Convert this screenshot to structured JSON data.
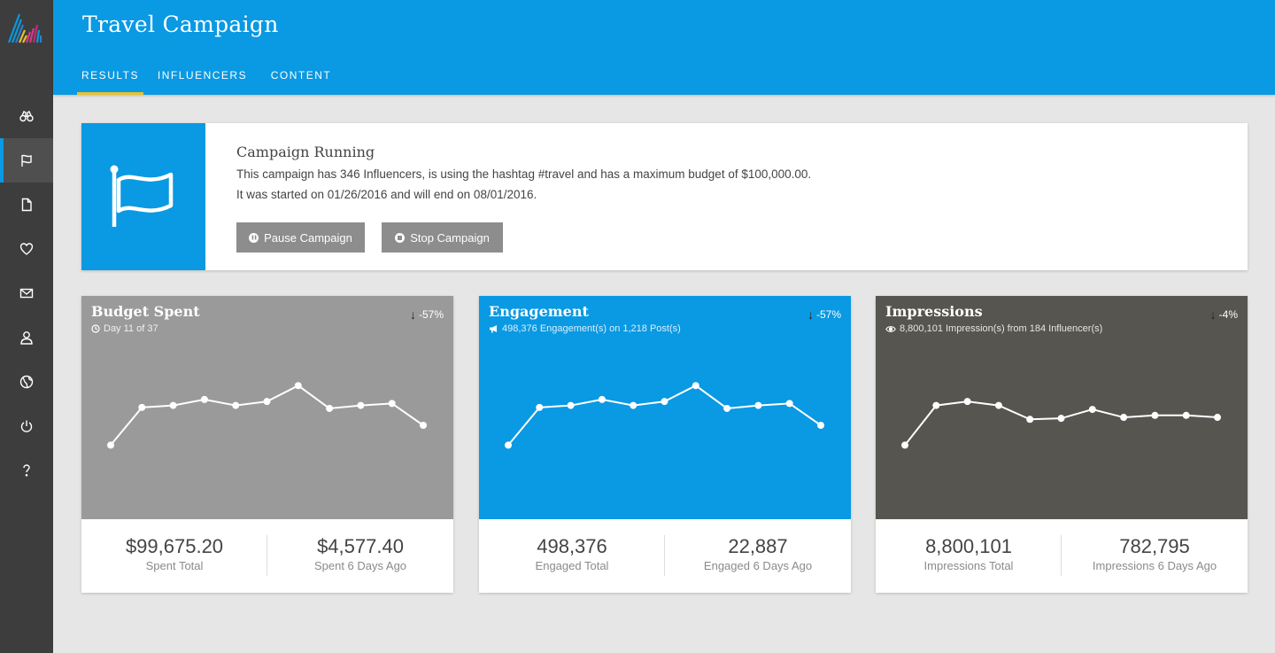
{
  "header": {
    "title": "Travel Campaign",
    "tabs": [
      {
        "label": "RESULTS",
        "active": true
      },
      {
        "label": "INFLUENCERS",
        "active": false
      },
      {
        "label": "CONTENT",
        "active": false
      }
    ]
  },
  "sidebar": {
    "items": [
      {
        "icon": "binoculars-icon"
      },
      {
        "icon": "flag-icon",
        "active": true
      },
      {
        "icon": "document-icon"
      },
      {
        "icon": "heart-icon"
      },
      {
        "icon": "envelope-icon"
      },
      {
        "icon": "user-icon"
      },
      {
        "icon": "globe-icon"
      },
      {
        "icon": "power-icon"
      },
      {
        "icon": "question-icon"
      }
    ]
  },
  "status": {
    "title": "Campaign Running",
    "line1": "This campaign has 346 Influencers, is using the hashtag #travel and has a maximum budget of $100,000.00.",
    "line2": "It was started on 01/26/2016 and will end on 08/01/2016.",
    "pause_label": "Pause Campaign",
    "stop_label": "Stop Campaign"
  },
  "colors": {
    "primary": "#0a99e3",
    "budget_bg": "#9a9a9a",
    "engagement_bg": "#0a99e3",
    "impressions_bg": "#56554f",
    "sidebar": "#3d3d3d",
    "tab_indicator": "#e6c32f"
  },
  "cards": [
    {
      "title": "Budget Spent",
      "subtitle": "Day 11 of 37",
      "subtitle_icon": "clock-icon",
      "change": "-57%",
      "stat1_value": "$99,675.20",
      "stat1_label": "Spent Total",
      "stat2_value": "$4,577.40",
      "stat2_label": "Spent 6 Days Ago"
    },
    {
      "title": "Engagement",
      "subtitle": "498,376 Engagement(s) on 1,218 Post(s)",
      "subtitle_icon": "megaphone-icon",
      "change": "-57%",
      "stat1_value": "498,376",
      "stat1_label": "Engaged Total",
      "stat2_value": "22,887",
      "stat2_label": "Engaged 6 Days Ago"
    },
    {
      "title": "Impressions",
      "subtitle": "8,800,101 Impression(s) from 184 Influencer(s)",
      "subtitle_icon": "eye-icon",
      "change": "-4%",
      "stat1_value": "8,800,101",
      "stat1_label": "Impressions Total",
      "stat2_value": "782,795",
      "stat2_label": "Impressions 6 Days Ago"
    }
  ],
  "chart_data": [
    {
      "type": "line",
      "values": [
        0.3,
        0.68,
        0.7,
        0.76,
        0.7,
        0.74,
        0.9,
        0.67,
        0.7,
        0.72,
        0.5
      ]
    },
    {
      "type": "line",
      "values": [
        0.3,
        0.68,
        0.7,
        0.76,
        0.7,
        0.74,
        0.9,
        0.67,
        0.7,
        0.72,
        0.5
      ]
    },
    {
      "type": "line",
      "values": [
        0.3,
        0.7,
        0.74,
        0.7,
        0.56,
        0.57,
        0.66,
        0.58,
        0.6,
        0.6,
        0.58
      ]
    }
  ]
}
